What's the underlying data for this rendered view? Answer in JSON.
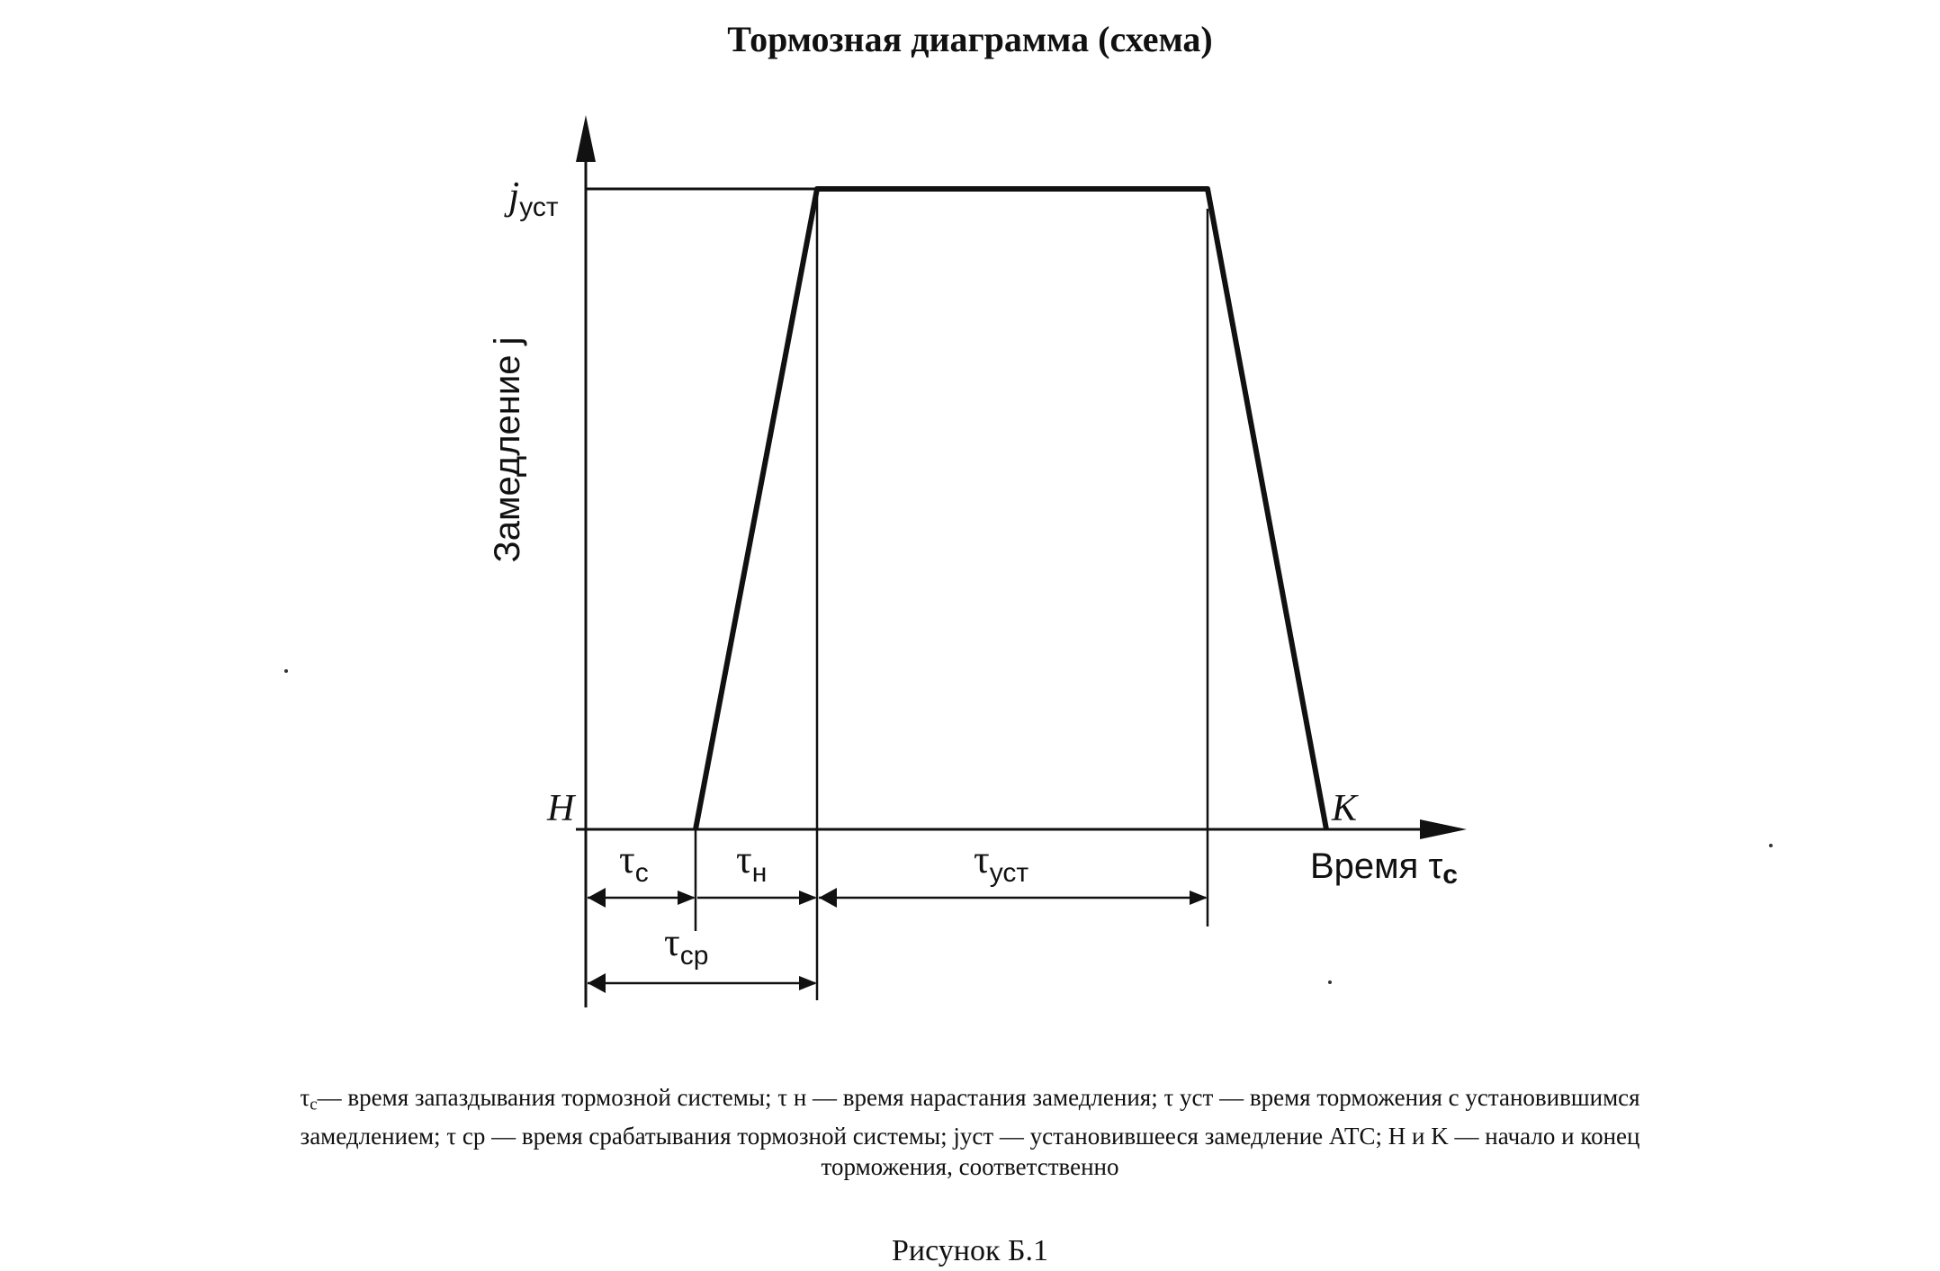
{
  "title": "Тормозная диаграмма (схема)",
  "axes": {
    "y_label": "Замедление j",
    "x_label_text": "Время τ",
    "x_label_sub": "c"
  },
  "points": {
    "start": "H",
    "end": "K",
    "level_main": "j",
    "level_sub": "уст"
  },
  "intervals": [
    {
      "id": "tau-c",
      "main": "τ",
      "sub": "c"
    },
    {
      "id": "tau-n",
      "main": "τ",
      "sub": "н"
    },
    {
      "id": "tau-ust",
      "main": "τ",
      "sub": "уст"
    },
    {
      "id": "tau-cp",
      "main": "τ",
      "sub": "ср"
    }
  ],
  "caption": {
    "line1": "τ",
    "line1_sub": "c",
    "line1_rest": "— время запаздывания тормозной системы; τ н — время нарастания замедления; τ уст — время торможения с установившимся",
    "line2": "замедлением; τ ср — время срабатывания тормозной системы; jуст — установившееся замедление АТС; H и K — начало и конец",
    "line3": "торможения, соответственно"
  },
  "figure_label": "Рисунок Б.1",
  "colors": {
    "ink": "#111111",
    "background": "#ffffff"
  }
}
